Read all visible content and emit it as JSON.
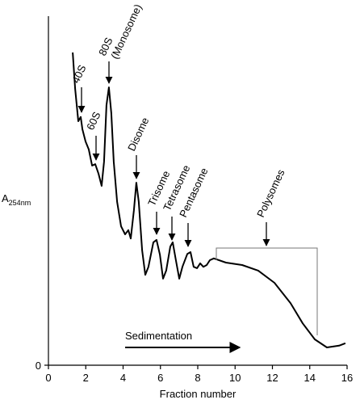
{
  "chart_data": {
    "type": "line",
    "xlabel": "Fraction number",
    "ylabel": {
      "text": "A",
      "subscript": "254nm"
    },
    "x": [
      1.3,
      1.43,
      1.6,
      1.73,
      1.82,
      1.99,
      2.16,
      2.34,
      2.51,
      2.68,
      2.85,
      2.98,
      3.11,
      3.24,
      3.37,
      3.5,
      3.68,
      3.89,
      4.11,
      4.28,
      4.41,
      4.58,
      4.71,
      4.84,
      5.02,
      5.19,
      5.36,
      5.62,
      5.79,
      5.97,
      6.14,
      6.31,
      6.53,
      6.66,
      6.83,
      7.01,
      7.18,
      7.44,
      7.61,
      7.78,
      7.96,
      8.13,
      8.3,
      8.48,
      8.65,
      8.86,
      9.51,
      10.38,
      11.24,
      12.11,
      12.97,
      13.62,
      14.27,
      14.92,
      15.57,
      15.91
    ],
    "values": [
      89.6,
      79.2,
      69.9,
      71.1,
      67.6,
      64.1,
      61.8,
      57.2,
      57.6,
      54.9,
      51.4,
      58.3,
      74.5,
      79.6,
      72.2,
      58.3,
      46.8,
      39.8,
      37.5,
      38.7,
      36.3,
      44.4,
      52.3,
      46.8,
      32.9,
      25.9,
      28.2,
      35.2,
      35.9,
      31.7,
      24.8,
      27.1,
      34.0,
      35.2,
      30.1,
      24.8,
      28.2,
      31.9,
      32.4,
      28.2,
      27.8,
      29.2,
      28.2,
      28.7,
      30.1,
      30.6,
      29.4,
      28.7,
      27.1,
      23.6,
      17.8,
      12.0,
      7.4,
      5.1,
      5.6,
      6.3
    ],
    "color": "#000000",
    "xlim": [
      0,
      16
    ],
    "xticks": [
      0,
      2,
      4,
      6,
      8,
      10,
      12,
      14,
      16
    ],
    "ylim": [
      0,
      100
    ],
    "yticks": [
      0
    ],
    "annotations": [
      "40S",
      "60S",
      "80S",
      "(Monosome)",
      "Disome",
      "Trisome",
      "Tetrasome",
      "Pentasome",
      "Polysomes",
      "Sedimentation"
    ]
  }
}
